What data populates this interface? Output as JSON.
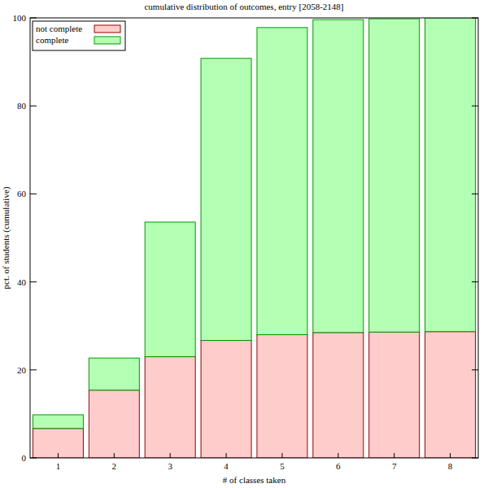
{
  "chart_data": {
    "type": "bar",
    "title": "cumulative distribution of outcomes, entry [2058-2148]",
    "x_label": "# of classes taken",
    "y_label": "pct. of students (cumulative)",
    "categories": [
      "1",
      "2",
      "3",
      "4",
      "5",
      "6",
      "7",
      "8"
    ],
    "series": [
      {
        "name": "not complete",
        "color": "#ffcccc",
        "values": [
          6.7,
          15.4,
          23.0,
          26.7,
          28.0,
          28.5,
          28.6,
          28.7
        ]
      },
      {
        "name": "complete",
        "color": "#b3ffb3",
        "values": [
          3.1,
          7.3,
          30.6,
          64.1,
          69.8,
          71.1,
          71.2,
          71.3
        ]
      }
    ],
    "stacked": true,
    "legend": "upper left",
    "ylim": [
      0,
      100
    ],
    "yticks": [
      0,
      20,
      40,
      60,
      80,
      100
    ]
  }
}
